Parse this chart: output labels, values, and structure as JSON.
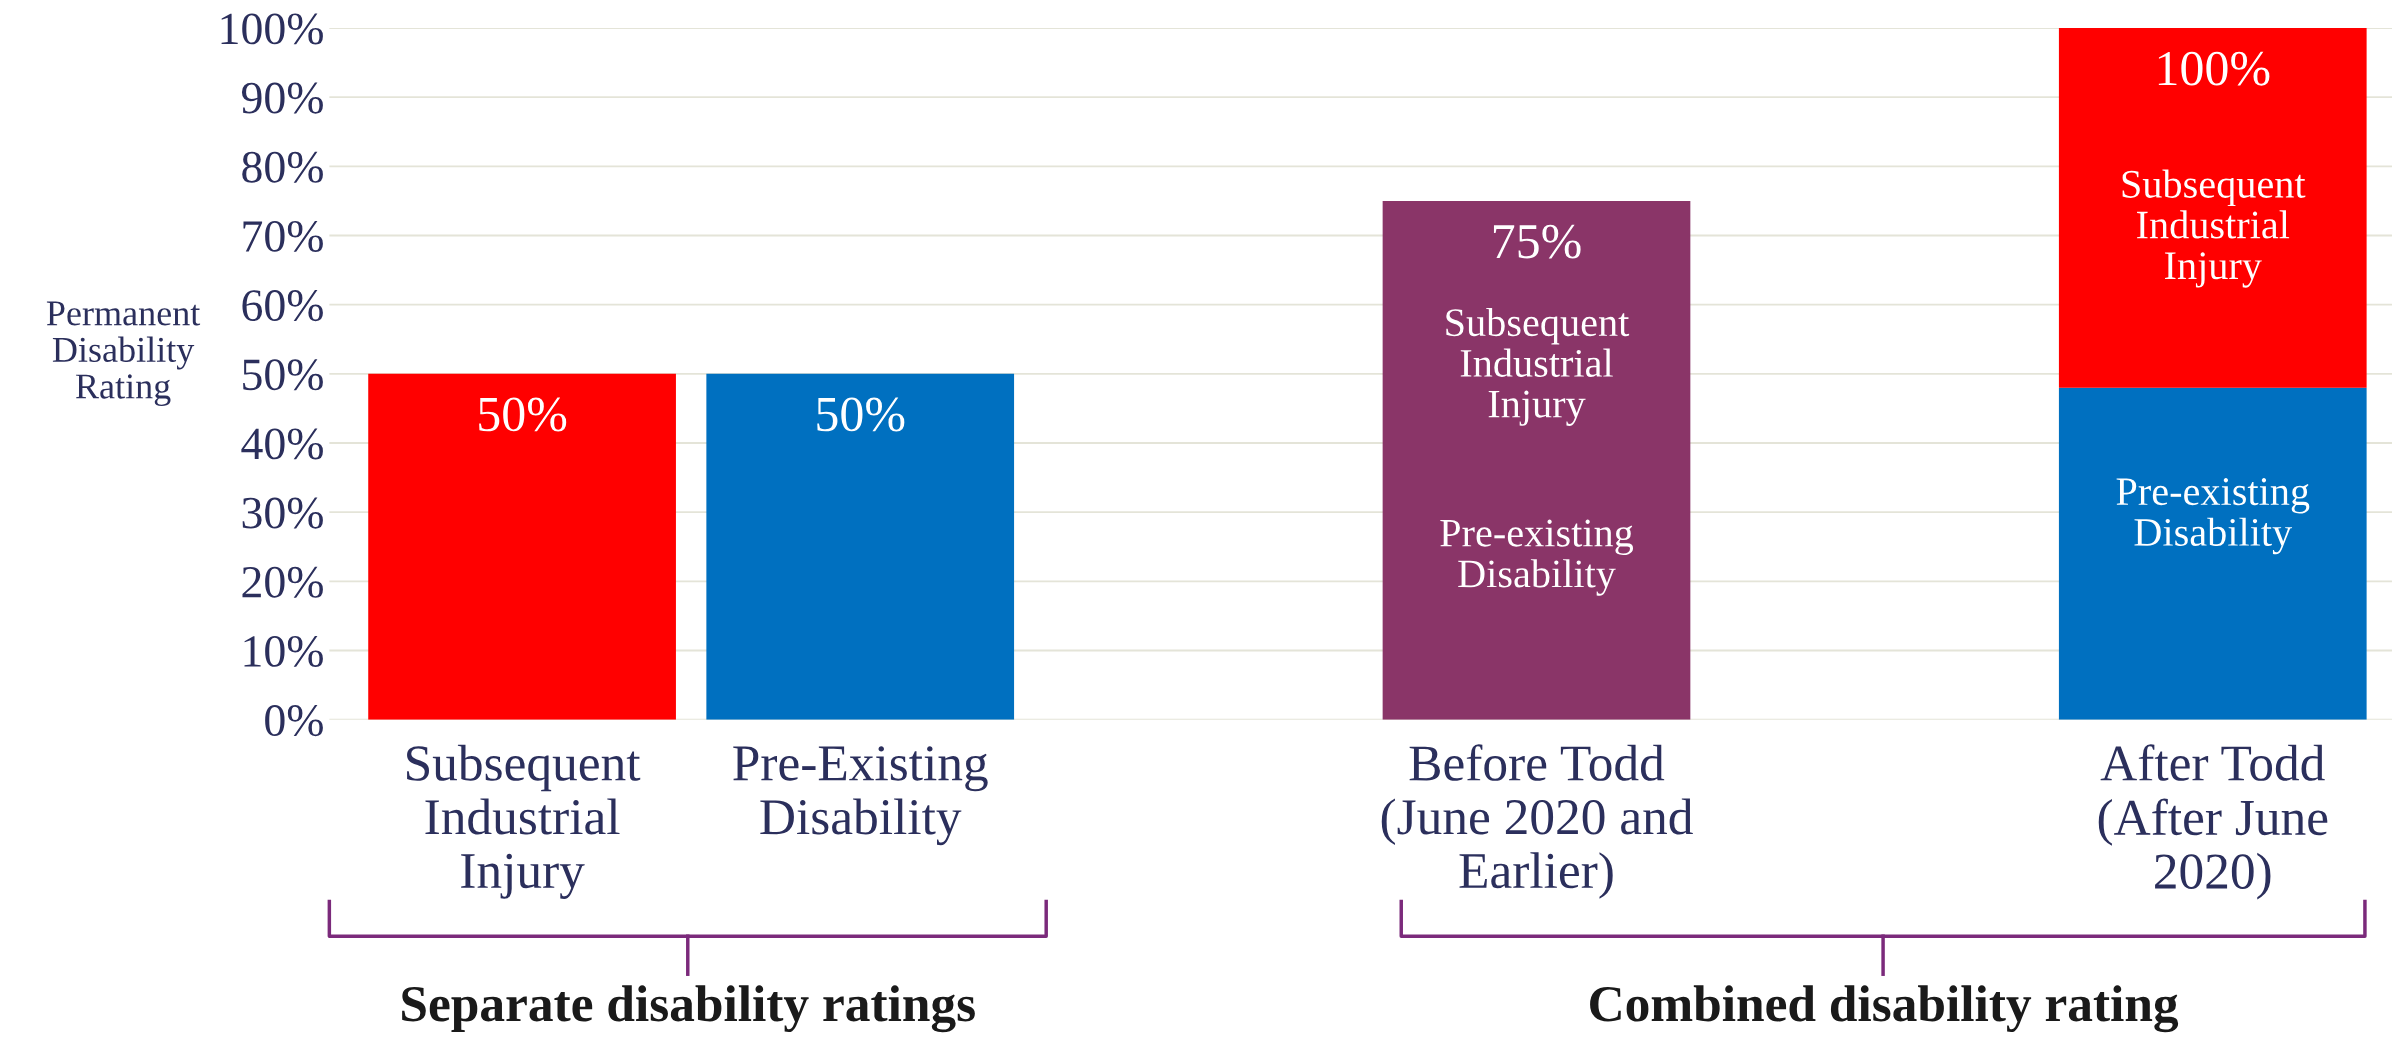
{
  "chart_data": {
    "type": "bar",
    "stacked": true,
    "ylabel": "Permanent\nDisability\nRating",
    "categories": [
      "Subsequent\nIndustrial\nInjury",
      "Pre-Existing\nDisability",
      null,
      "Before Todd\n(June 2020 and\nEarlier)",
      null,
      "After Todd\n(After June\n2020)"
    ],
    "series": [
      {
        "color": "#0070c0",
        "values": [
          null,
          50,
          null,
          null,
          null,
          48
        ]
      },
      {
        "color": "#ff0000",
        "values": [
          50,
          null,
          null,
          null,
          null,
          52
        ]
      },
      {
        "color": "#8a3568",
        "values": [
          null,
          null,
          null,
          75,
          null,
          null
        ]
      }
    ],
    "totals": [
      "50%",
      "50%",
      null,
      "75%",
      null,
      "100%"
    ],
    "ylim": [
      0,
      100
    ],
    "yticks": [
      {
        "value": 0,
        "label": "0%"
      },
      {
        "value": 10,
        "label": "10%"
      },
      {
        "value": 20,
        "label": "20%"
      },
      {
        "value": 30,
        "label": "30%"
      },
      {
        "value": 40,
        "label": "40%"
      },
      {
        "value": 50,
        "label": "50%"
      },
      {
        "value": 60,
        "label": "60%"
      },
      {
        "value": 70,
        "label": "70%"
      },
      {
        "value": 80,
        "label": "80%"
      },
      {
        "value": 90,
        "label": "90%"
      },
      {
        "value": 100,
        "label": "100%"
      }
    ],
    "grid": "y",
    "annotations": [
      "Subsequent\nIndustrial\nInjury",
      "Pre-existing\nDisability",
      "Subsequent\nIndustrial\nInjury",
      "Pre-existing\nDisability",
      "Separate disability ratings",
      "Combined disability rating"
    ]
  }
}
